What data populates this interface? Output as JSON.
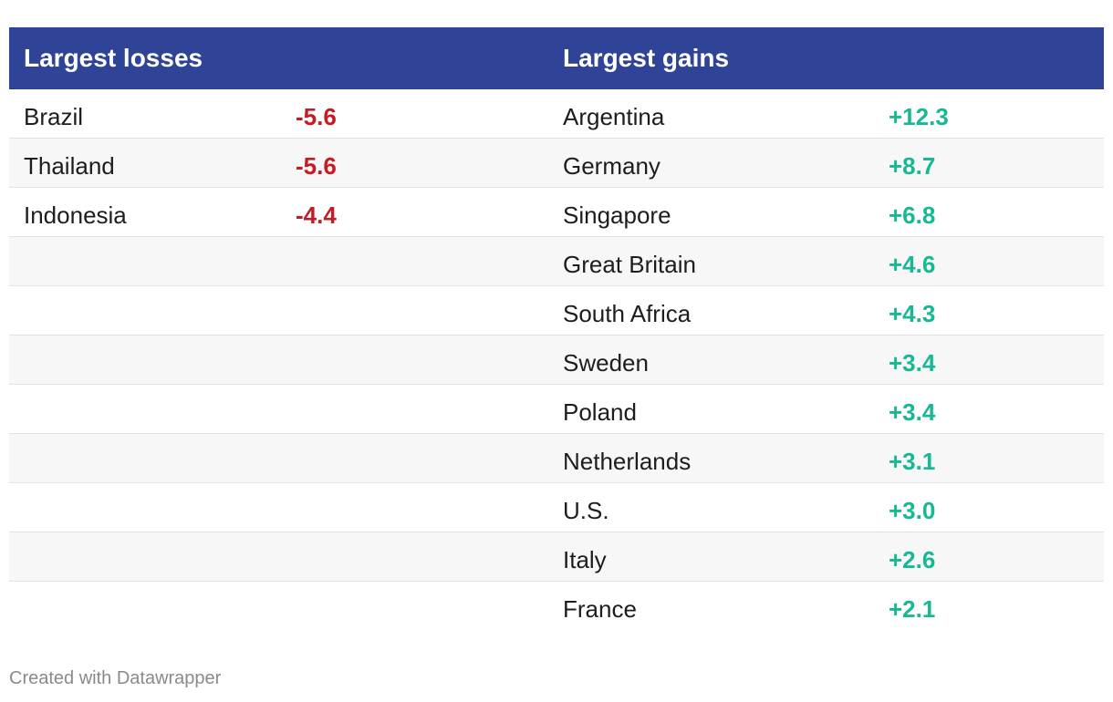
{
  "colors": {
    "header_bg": "#304497",
    "header_text": "#ffffff",
    "loss": "#c61b22",
    "gain": "#17b894",
    "row_alt_bg": "#f7f7f7",
    "footer_text": "#8a8a8a"
  },
  "chart_data": {
    "type": "table",
    "columns": [
      "Largest losses",
      "",
      "Largest gains",
      ""
    ],
    "losses": [
      {
        "country": "Brazil",
        "value": "-5.6"
      },
      {
        "country": "Thailand",
        "value": "-5.6"
      },
      {
        "country": "Indonesia",
        "value": "-4.4"
      }
    ],
    "gains": [
      {
        "country": "Argentina",
        "value": "+12.3"
      },
      {
        "country": "Germany",
        "value": "+8.7"
      },
      {
        "country": "Singapore",
        "value": "+6.8"
      },
      {
        "country": "Great Britain",
        "value": "+4.6"
      },
      {
        "country": "South Africa",
        "value": "+4.3"
      },
      {
        "country": "Sweden",
        "value": "+3.4"
      },
      {
        "country": "Poland",
        "value": "+3.4"
      },
      {
        "country": "Netherlands",
        "value": "+3.1"
      },
      {
        "country": "U.S.",
        "value": "+3.0"
      },
      {
        "country": "Italy",
        "value": "+2.6"
      },
      {
        "country": "France",
        "value": "+2.1"
      }
    ]
  },
  "footer": {
    "credit": "Created with Datawrapper"
  }
}
